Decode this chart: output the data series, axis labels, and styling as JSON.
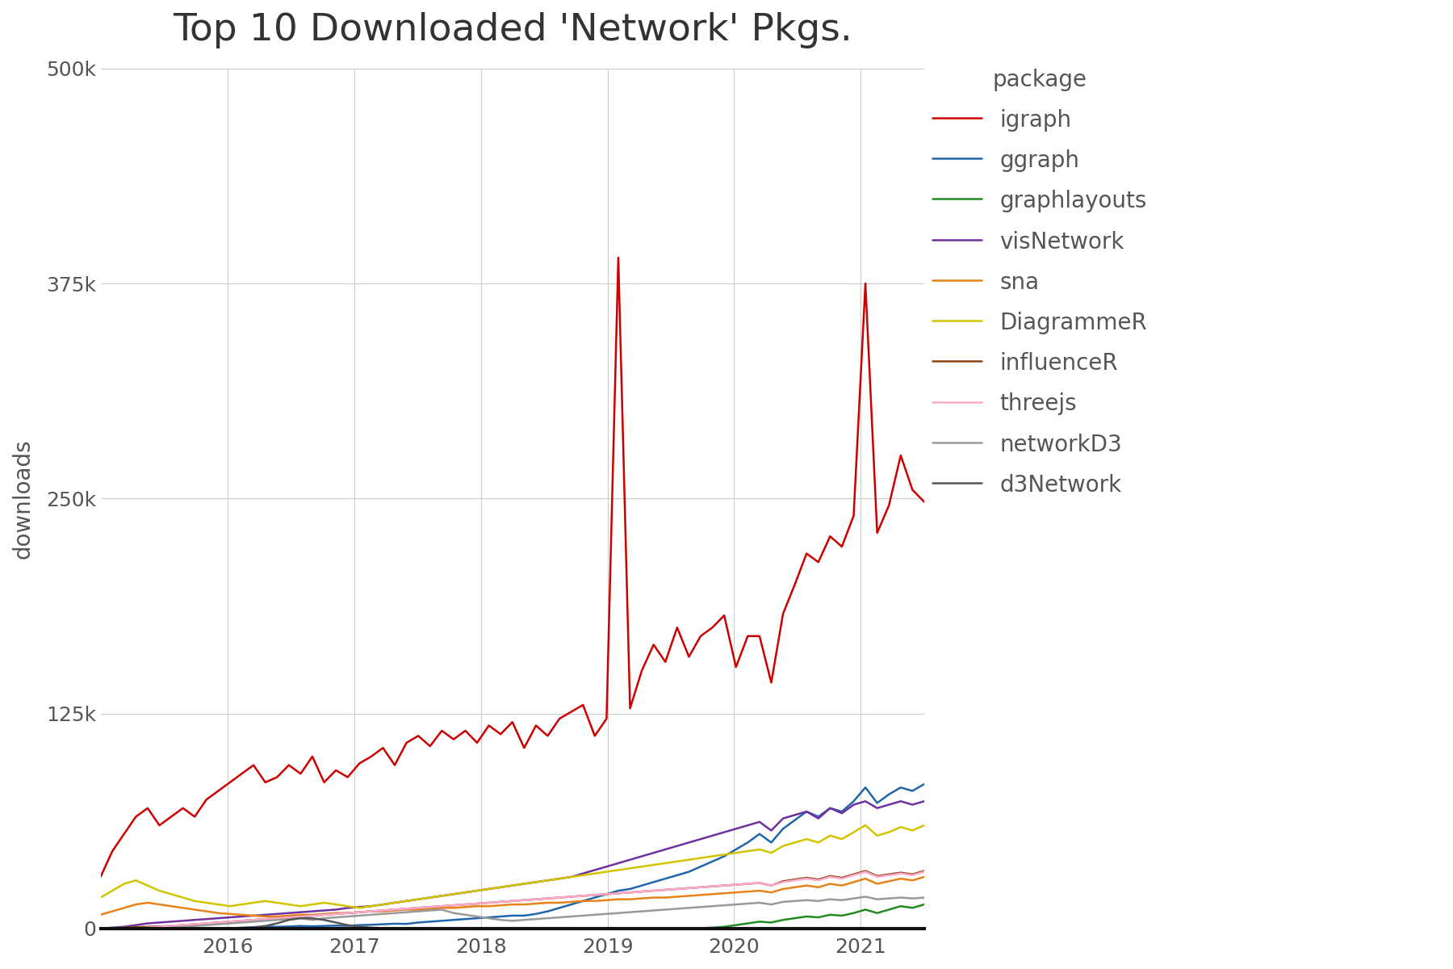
{
  "title": "Top 10 Downloaded 'Network' Pkgs.",
  "ylabel": "downloads",
  "packages": [
    "igraph",
    "ggraph",
    "graphlayouts",
    "visNetwork",
    "sna",
    "DiagrammeR",
    "influenceR",
    "threejs",
    "networkD3",
    "d3Network"
  ],
  "colors": [
    "#cc0000",
    "#2166ac",
    "#228B22",
    "#7030a0",
    "#e8821a",
    "#d4c400",
    "#8B4513",
    "#ffaacc",
    "#999999",
    "#555555"
  ],
  "ylim": [
    0,
    500000
  ],
  "yticks": [
    0,
    125000,
    250000,
    375000,
    500000
  ],
  "ytick_labels": [
    "0",
    "125k",
    "250k",
    "375k",
    "500k"
  ],
  "background_color": "#ffffff",
  "grid_color": "#cccccc",
  "line_width": 1.8,
  "title_fontsize": 34,
  "axis_fontsize": 20,
  "legend_fontsize": 20,
  "tick_fontsize": 18,
  "igraph": [
    30000,
    45000,
    55000,
    65000,
    70000,
    60000,
    65000,
    70000,
    65000,
    75000,
    80000,
    85000,
    90000,
    95000,
    85000,
    88000,
    95000,
    90000,
    100000,
    85000,
    92000,
    88000,
    96000,
    100000,
    105000,
    95000,
    108000,
    112000,
    106000,
    115000,
    110000,
    115000,
    108000,
    118000,
    113000,
    120000,
    105000,
    118000,
    112000,
    122000,
    126000,
    130000,
    112000,
    122000,
    390000,
    128000,
    150000,
    165000,
    155000,
    175000,
    158000,
    170000,
    175000,
    182000,
    152000,
    170000,
    170000,
    143000,
    183000,
    200000,
    218000,
    213000,
    228000,
    222000,
    240000,
    375000,
    230000,
    246000,
    275000,
    255000,
    248000
  ],
  "ggraph": [
    0,
    0,
    0,
    0,
    0,
    0,
    0,
    0,
    0,
    0,
    0,
    0,
    500,
    800,
    1200,
    1000,
    1200,
    1500,
    1300,
    1500,
    1700,
    1600,
    2000,
    2200,
    2500,
    2800,
    2700,
    3500,
    4000,
    4500,
    5000,
    5500,
    6000,
    6500,
    7000,
    7500,
    7500,
    8500,
    10000,
    12000,
    14000,
    16000,
    18000,
    20000,
    22000,
    23000,
    25000,
    27000,
    29000,
    31000,
    33000,
    36000,
    39000,
    42000,
    46000,
    50000,
    55000,
    50000,
    58000,
    63000,
    68000,
    65000,
    70000,
    68000,
    74000,
    82000,
    73000,
    78000,
    82000,
    80000,
    84000
  ],
  "graphlayouts": [
    0,
    0,
    0,
    0,
    0,
    0,
    0,
    0,
    0,
    0,
    0,
    0,
    0,
    0,
    0,
    0,
    0,
    0,
    0,
    0,
    0,
    0,
    0,
    0,
    0,
    0,
    0,
    0,
    0,
    0,
    0,
    0,
    0,
    0,
    0,
    0,
    0,
    0,
    0,
    0,
    0,
    0,
    0,
    0,
    0,
    0,
    0,
    0,
    0,
    0,
    0,
    200,
    500,
    1000,
    2000,
    3000,
    4000,
    3500,
    5000,
    6000,
    7000,
    6500,
    8000,
    7500,
    9000,
    11000,
    9000,
    11000,
    13000,
    12000,
    14000
  ],
  "visNetwork": [
    0,
    500,
    1000,
    2000,
    3000,
    3500,
    4000,
    4500,
    5000,
    5500,
    6000,
    6500,
    7000,
    7500,
    8000,
    8500,
    9000,
    9500,
    10000,
    10500,
    11000,
    12000,
    12500,
    13000,
    14000,
    15000,
    16000,
    17000,
    18000,
    19000,
    20000,
    21000,
    22000,
    23000,
    24000,
    25000,
    26000,
    27000,
    28000,
    29000,
    30000,
    32000,
    34000,
    36000,
    38000,
    40000,
    42000,
    44000,
    46000,
    48000,
    50000,
    52000,
    54000,
    56000,
    58000,
    60000,
    62000,
    57000,
    64000,
    66000,
    68000,
    64000,
    70000,
    67000,
    72000,
    74000,
    70000,
    72000,
    74000,
    72000,
    74000
  ],
  "sna": [
    8000,
    10000,
    12000,
    14000,
    15000,
    14000,
    13000,
    12000,
    11000,
    10000,
    9000,
    8500,
    8000,
    7500,
    7000,
    7000,
    7500,
    8000,
    8000,
    8500,
    9000,
    9000,
    9500,
    10000,
    10000,
    10500,
    11000,
    11000,
    11500,
    12000,
    12000,
    12500,
    13000,
    13000,
    13500,
    14000,
    14000,
    14500,
    15000,
    15000,
    15500,
    16000,
    16000,
    16500,
    17000,
    17000,
    17500,
    18000,
    18000,
    18500,
    19000,
    19500,
    20000,
    20500,
    21000,
    21500,
    22000,
    21000,
    23000,
    24000,
    25000,
    24000,
    26000,
    25000,
    27000,
    29000,
    26000,
    27500,
    29000,
    28000,
    30000
  ],
  "DiagrammeR": [
    18000,
    22000,
    26000,
    28000,
    25000,
    22000,
    20000,
    18000,
    16000,
    15000,
    14000,
    13000,
    14000,
    15000,
    16000,
    15000,
    14000,
    13000,
    14000,
    15000,
    14000,
    13000,
    12000,
    13000,
    14000,
    15000,
    16000,
    17000,
    18000,
    19000,
    20000,
    21000,
    22000,
    23000,
    24000,
    25000,
    26000,
    27000,
    28000,
    29000,
    30000,
    31000,
    32000,
    33000,
    34000,
    35000,
    36000,
    37000,
    38000,
    39000,
    40000,
    41000,
    42000,
    43000,
    44000,
    45000,
    46000,
    44000,
    48000,
    50000,
    52000,
    50000,
    54000,
    52000,
    56000,
    60000,
    54000,
    56000,
    59000,
    57000,
    60000
  ],
  "influenceR": [
    0,
    0,
    500,
    800,
    1000,
    1200,
    1500,
    2000,
    2500,
    3000,
    3500,
    4000,
    4500,
    5000,
    5500,
    6000,
    6500,
    7000,
    7500,
    8000,
    8500,
    9000,
    9500,
    10000,
    10500,
    11000,
    11500,
    12000,
    12500,
    13000,
    13500,
    14000,
    14500,
    15000,
    15500,
    16000,
    16500,
    17000,
    17500,
    18000,
    18500,
    19000,
    19500,
    20000,
    20500,
    21000,
    21500,
    22000,
    22500,
    23000,
    23500,
    24000,
    24500,
    25000,
    25500,
    26000,
    26500,
    25000,
    27500,
    28500,
    29500,
    28500,
    30500,
    29500,
    31500,
    33500,
    30500,
    31500,
    32500,
    31500,
    33500
  ],
  "threejs": [
    0,
    0,
    0,
    0,
    500,
    1000,
    1500,
    2000,
    2500,
    3000,
    3500,
    4000,
    4500,
    5000,
    5500,
    6000,
    6500,
    7000,
    7500,
    8000,
    8500,
    9000,
    9500,
    10000,
    10500,
    11000,
    11500,
    12000,
    12500,
    13000,
    13500,
    14000,
    14500,
    15000,
    15500,
    16000,
    16500,
    17000,
    17500,
    18000,
    18500,
    19000,
    19500,
    20000,
    20500,
    21000,
    21500,
    22000,
    22500,
    23000,
    23500,
    24000,
    24500,
    25000,
    25500,
    26000,
    26500,
    25000,
    27000,
    28000,
    29000,
    28000,
    30000,
    29000,
    31000,
    33000,
    30000,
    31000,
    32000,
    31000,
    33000
  ],
  "networkD3": [
    0,
    0,
    0,
    0,
    0,
    0,
    500,
    1000,
    1500,
    2000,
    2500,
    3000,
    3500,
    4000,
    4500,
    5000,
    5500,
    6000,
    5000,
    6000,
    6500,
    7000,
    7500,
    8000,
    8500,
    9000,
    9500,
    10000,
    10500,
    11000,
    9000,
    8000,
    7000,
    6000,
    5000,
    4500,
    5000,
    5500,
    6000,
    6500,
    7000,
    7500,
    8000,
    8500,
    9000,
    9500,
    10000,
    10500,
    11000,
    11500,
    12000,
    12500,
    13000,
    13500,
    14000,
    14500,
    15000,
    14000,
    15500,
    16000,
    16500,
    16000,
    17000,
    16500,
    17500,
    18500,
    17000,
    17500,
    18000,
    17500,
    18000
  ],
  "d3Network": [
    0,
    0,
    0,
    0,
    0,
    0,
    0,
    0,
    0,
    0,
    0,
    0,
    0,
    500,
    1500,
    3000,
    5000,
    6000,
    6000,
    5000,
    3500,
    2000,
    1000,
    500,
    200,
    100,
    50,
    0,
    0,
    0,
    0,
    0,
    0,
    0,
    0,
    0,
    0,
    0,
    0,
    0,
    0,
    0,
    0,
    0,
    0,
    0,
    0,
    0,
    0,
    0,
    0,
    0,
    0,
    0,
    0,
    0,
    0,
    0,
    0,
    0,
    0,
    0,
    0,
    0,
    0,
    0,
    0,
    0,
    0,
    0,
    0
  ],
  "n_points": 71,
  "x_start_year": 2015.0,
  "x_end_year": 2021.5,
  "xtick_years": [
    2016,
    2017,
    2018,
    2019,
    2020,
    2021
  ]
}
